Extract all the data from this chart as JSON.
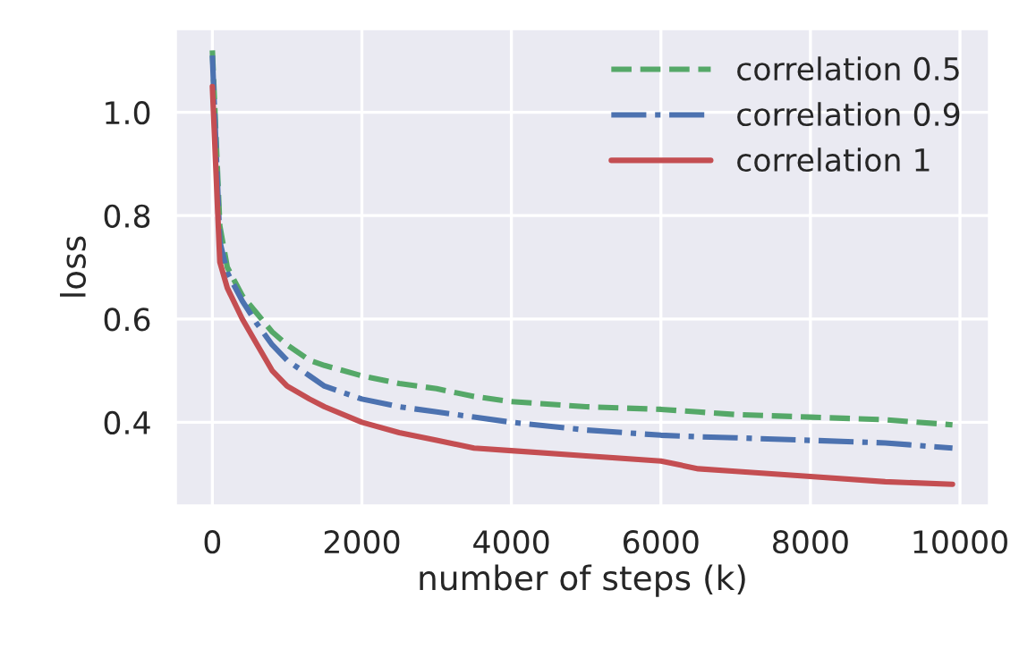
{
  "chart_data": {
    "type": "line",
    "xlabel": "number of steps (k)",
    "ylabel": "loss",
    "xlim": [
      -495,
      10395
    ],
    "ylim": [
      0.238,
      1.162
    ],
    "xticks": [
      0,
      2000,
      4000,
      6000,
      8000,
      10000
    ],
    "yticks": [
      {
        "value": 0.4,
        "label": "0.4"
      },
      {
        "value": 0.6,
        "label": "0.6"
      },
      {
        "value": 0.8,
        "label": "0.8"
      },
      {
        "value": 1.0,
        "label": "1.0"
      }
    ],
    "grid": true,
    "legend": "top right",
    "marker": "none",
    "x": [
      0,
      100,
      200,
      400,
      600,
      800,
      1000,
      1300,
      1500,
      2000,
      2500,
      3000,
      3500,
      4000,
      5000,
      6000,
      6500,
      7000,
      8000,
      9000,
      9900
    ],
    "series": [
      {
        "name": "correlation 0.5",
        "color": "#55a868",
        "line_style": "dashed",
        "values": [
          1.12,
          0.78,
          0.7,
          0.645,
          0.61,
          0.575,
          0.55,
          0.52,
          0.51,
          0.49,
          0.475,
          0.465,
          0.45,
          0.44,
          0.43,
          0.425,
          0.42,
          0.415,
          0.41,
          0.405,
          0.395
        ]
      },
      {
        "name": "correlation 0.9",
        "color": "#4c72b0",
        "line_style": "dashdot",
        "values": [
          1.11,
          0.75,
          0.69,
          0.635,
          0.59,
          0.55,
          0.52,
          0.49,
          0.47,
          0.445,
          0.43,
          0.42,
          0.41,
          0.4,
          0.385,
          0.375,
          0.372,
          0.37,
          0.365,
          0.36,
          0.35
        ]
      },
      {
        "name": "correlation 1",
        "color": "#c44e52",
        "line_style": "solid",
        "values": [
          1.05,
          0.71,
          0.66,
          0.6,
          0.55,
          0.5,
          0.47,
          0.445,
          0.43,
          0.4,
          0.38,
          0.365,
          0.35,
          0.345,
          0.335,
          0.325,
          0.31,
          0.305,
          0.295,
          0.285,
          0.28
        ]
      }
    ]
  }
}
